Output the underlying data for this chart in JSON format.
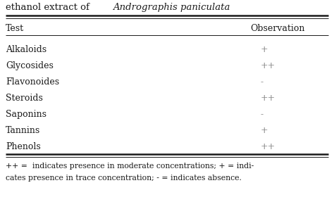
{
  "title_normal": "ethanol extract of ",
  "title_italic": "Andrographis paniculata",
  "col1_header": "Test",
  "col2_header": "Observation",
  "rows": [
    [
      "Alkaloids",
      "+"
    ],
    [
      "Glycosides",
      "++"
    ],
    [
      "Flavonoides",
      "-"
    ],
    [
      "Steroids",
      "++"
    ],
    [
      "Saponins",
      "-"
    ],
    [
      "Tannins",
      "+"
    ],
    [
      "Phenols",
      "++"
    ]
  ],
  "footnote_line1": "++ =  indicates presence in moderate concentrations; + = indi-",
  "footnote_line2": "cates presence in trace concentration; - = indicates absence.",
  "bg_color": "#ffffff",
  "text_color": "#1a1a1a",
  "obs_color": "#888888",
  "title_fontsize": 9.5,
  "header_fontsize": 9.0,
  "row_fontsize": 9.0,
  "footnote_fontsize": 7.8
}
